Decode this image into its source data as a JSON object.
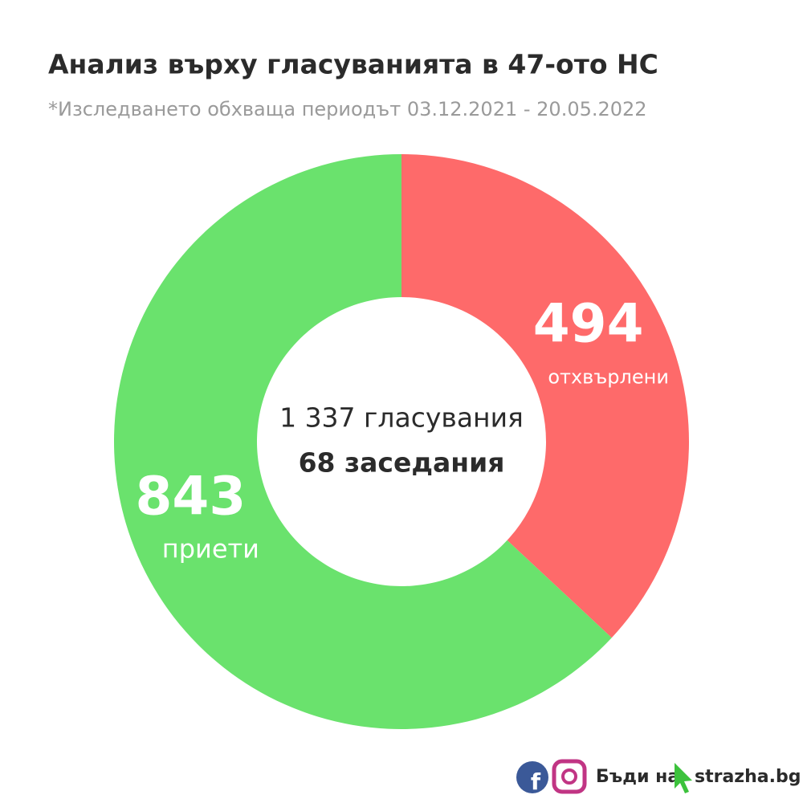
{
  "chart_data": {
    "type": "donut",
    "title": "Анализ върху гласуванията в 47-ото НС",
    "subtitle": "*Изследването обхваща периодът 03.12.2021 - 20.05.2022",
    "categories": [
      "отхвърлени",
      "приети"
    ],
    "values": [
      494,
      843
    ],
    "colors": [
      "#fe6a6a",
      "#6ae26d"
    ],
    "center_text": [
      "1 337 гласувания",
      "68 заседания"
    ]
  },
  "footer": {
    "text": "Бъди на",
    "site": "strazha.bg"
  }
}
